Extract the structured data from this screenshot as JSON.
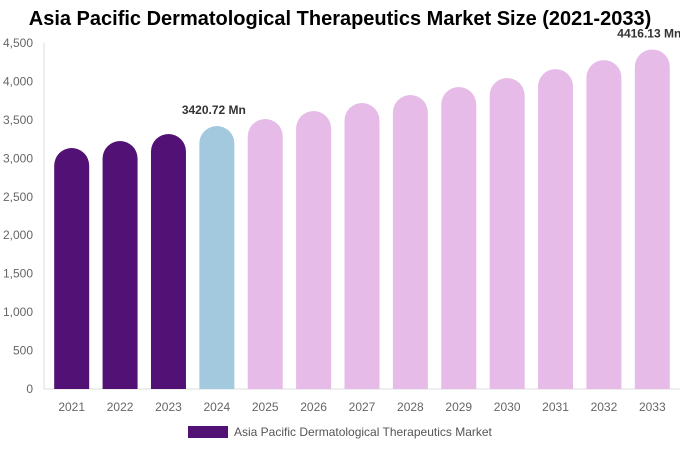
{
  "chart_data": {
    "type": "bar",
    "title": "Asia Pacific Dermatological Therapeutics Market Size (2021-2033)",
    "categories": [
      "2021",
      "2022",
      "2023",
      "2024",
      "2025",
      "2026",
      "2027",
      "2028",
      "2029",
      "2030",
      "2031",
      "2032",
      "2033"
    ],
    "series": [
      {
        "name": "Asia Pacific Dermatological Therapeutics Market",
        "values": [
          3134,
          3225,
          3316,
          3420.72,
          3511,
          3615,
          3719,
          3823,
          3927,
          4044,
          4161,
          4278,
          4416.13
        ]
      }
    ],
    "data_labels": {
      "2024": "3420.72 Mn",
      "2033": "4416.13 Mn"
    },
    "ylim": [
      0,
      4500
    ],
    "yticks": [
      "0",
      "500",
      "1,000",
      "1,500",
      "2,000",
      "2,500",
      "3,000",
      "3,500",
      "4,000",
      "4,500"
    ],
    "grid": false,
    "legend_position": "bottom",
    "colors": {
      "historical": "#521175",
      "current": "#a3c9de",
      "forecast": "#e6bbe8"
    }
  }
}
